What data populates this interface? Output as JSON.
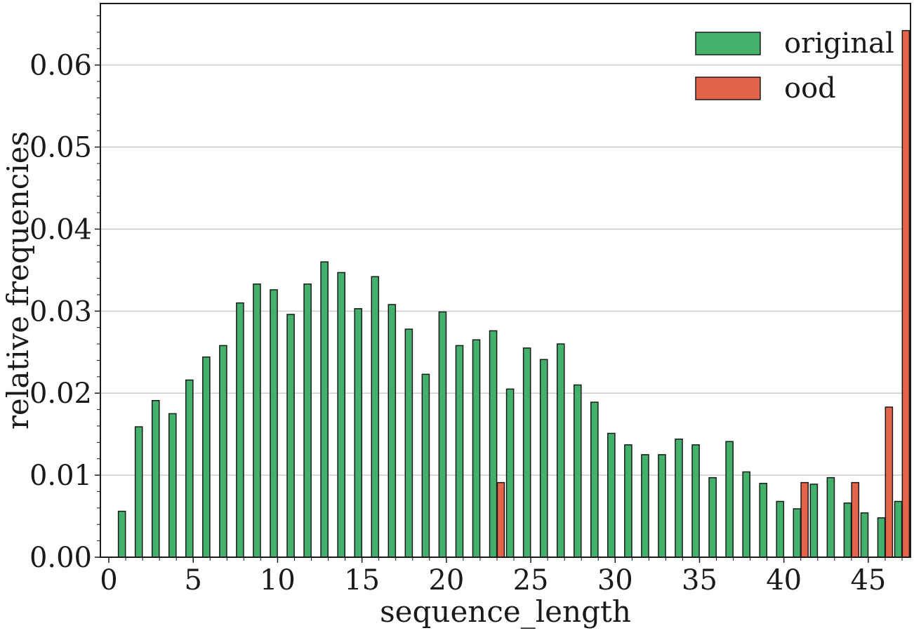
{
  "chart_data": {
    "type": "bar",
    "xlabel": "sequence_length",
    "ylabel": "relative frequencies",
    "xlim": [
      -0.5,
      47.5
    ],
    "ylim": [
      0,
      0.0675
    ],
    "xticks": [
      0,
      5,
      10,
      15,
      20,
      25,
      30,
      35,
      40,
      45
    ],
    "xtick_labels": [
      "0",
      "5",
      "10",
      "15",
      "20",
      "25",
      "30",
      "35",
      "40",
      "45"
    ],
    "yticks": [
      0,
      0.01,
      0.02,
      0.03,
      0.04,
      0.05,
      0.06
    ],
    "ytick_labels": [
      "0.00",
      "0.01",
      "0.02",
      "0.03",
      "0.04",
      "0.05",
      "0.06"
    ],
    "grid": "horizontal",
    "legend_position": "top-right",
    "series": [
      {
        "name": "original",
        "color": "#43b06c",
        "points": [
          [
            1,
            0.0056
          ],
          [
            2,
            0.0159
          ],
          [
            3,
            0.0191
          ],
          [
            4,
            0.0175
          ],
          [
            5,
            0.0216
          ],
          [
            6,
            0.0244
          ],
          [
            7,
            0.0258
          ],
          [
            8,
            0.031
          ],
          [
            9,
            0.0333
          ],
          [
            10,
            0.0326
          ],
          [
            11,
            0.0296
          ],
          [
            12,
            0.0333
          ],
          [
            13,
            0.036
          ],
          [
            14,
            0.0347
          ],
          [
            15,
            0.0303
          ],
          [
            16,
            0.0342
          ],
          [
            17,
            0.0308
          ],
          [
            18,
            0.0278
          ],
          [
            19,
            0.0223
          ],
          [
            20,
            0.0299
          ],
          [
            21,
            0.0258
          ],
          [
            22,
            0.0265
          ],
          [
            23,
            0.0276
          ],
          [
            24,
            0.0205
          ],
          [
            25,
            0.0255
          ],
          [
            26,
            0.0241
          ],
          [
            27,
            0.026
          ],
          [
            28,
            0.021
          ],
          [
            29,
            0.0189
          ],
          [
            30,
            0.0151
          ],
          [
            31,
            0.0137
          ],
          [
            32,
            0.0125
          ],
          [
            33,
            0.0125
          ],
          [
            34,
            0.0144
          ],
          [
            35,
            0.0137
          ],
          [
            36,
            0.0097
          ],
          [
            37,
            0.0141
          ],
          [
            38,
            0.0104
          ],
          [
            39,
            0.009
          ],
          [
            40,
            0.0068
          ],
          [
            41,
            0.0059
          ],
          [
            42,
            0.0089
          ],
          [
            43,
            0.0097
          ],
          [
            44,
            0.0066
          ],
          [
            45,
            0.0054
          ],
          [
            46,
            0.0048
          ],
          [
            47,
            0.0068
          ]
        ]
      },
      {
        "name": "ood",
        "color": "#e4644b",
        "points": [
          [
            23,
            0.0091
          ],
          [
            41,
            0.0091
          ],
          [
            44,
            0.0091
          ],
          [
            46,
            0.0183
          ],
          [
            47,
            0.0642
          ]
        ]
      }
    ]
  }
}
